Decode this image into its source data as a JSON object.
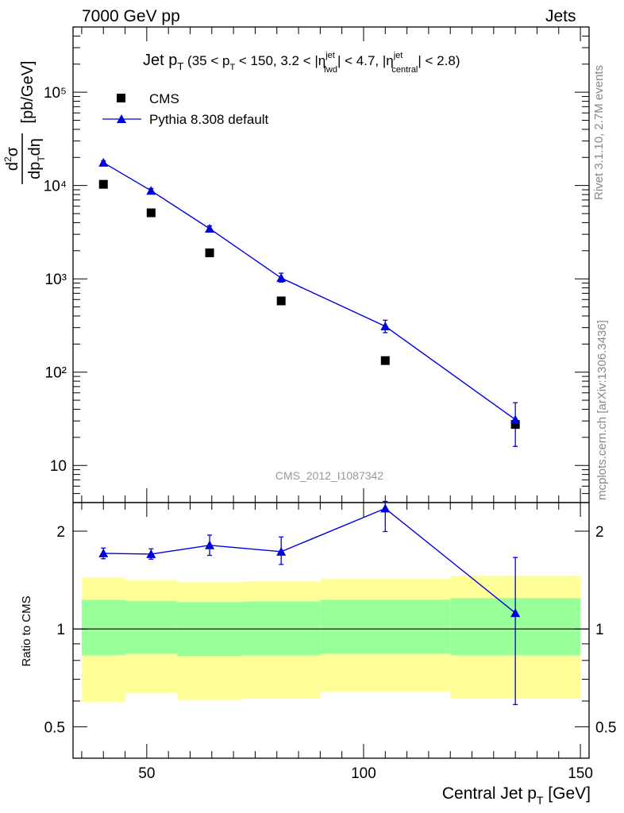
{
  "header": {
    "left": "7000 GeV pp",
    "right": "Jets"
  },
  "side_labels": {
    "rivet": "Rivet 3.1.10,  2.7M events",
    "mcplots": "mcplots.cern.ch [arXiv:1306.3436]"
  },
  "chart_data": [
    {
      "type": "scatter",
      "panel": "main",
      "title": "Jet p_T (35 < p_T < 150, 3.2 < |η_fwd^jet| < 4.7, |η_central^jet| < 2.8)",
      "title_parts": {
        "a": "Jet p",
        "b": "T",
        "c": " (35 < p",
        "d": "T",
        "e": " < 150, 3.2 < |η",
        "f": "jet",
        "g": "fwd",
        "h": "| < 4.7, |η",
        "i": "jet",
        "j": "central",
        "k": "| < 2.8)"
      },
      "ylabel": "d²σ/dp_T dη [pb/GeV]",
      "ylabel_parts": {
        "num": "d",
        "num_sup": "2",
        "num_tail": "σ",
        "den": "dp",
        "den_sub": "T",
        "den_tail": "dη",
        "unit": "[pb/GeV]"
      },
      "y_scale": "log",
      "xlim": [
        33,
        152
      ],
      "ylim": [
        4,
        500000
      ],
      "y_ticks": [
        "10",
        "10²",
        "10³",
        "10⁴",
        "10⁵"
      ],
      "legend_position": "top-left",
      "watermark": "CMS_2012_I1087342",
      "series": [
        {
          "name": "CMS",
          "marker": "square",
          "color": "#000000",
          "points": [
            {
              "x": 40,
              "y": 10300
            },
            {
              "x": 51,
              "y": 5100
            },
            {
              "x": 64.5,
              "y": 1900
            },
            {
              "x": 81,
              "y": 580
            },
            {
              "x": 105,
              "y": 133
            },
            {
              "x": 135,
              "y": 27.5
            }
          ]
        },
        {
          "name": "Pythia 8.308 default",
          "marker": "triangle",
          "color": "#0000dd",
          "line": true,
          "points": [
            {
              "x": 40,
              "y": 17600,
              "ylo": 16900,
              "yhi": 18400
            },
            {
              "x": 51,
              "y": 8800,
              "ylo": 8300,
              "yhi": 9300
            },
            {
              "x": 64.5,
              "y": 3450,
              "ylo": 3200,
              "yhi": 3700
            },
            {
              "x": 81,
              "y": 1020,
              "ylo": 920,
              "yhi": 1150
            },
            {
              "x": 105,
              "y": 310,
              "ylo": 265,
              "yhi": 360
            },
            {
              "x": 135,
              "y": 31,
              "ylo": 16,
              "yhi": 47
            }
          ]
        }
      ]
    },
    {
      "type": "scatter",
      "panel": "ratio",
      "xlabel": "Central Jet p_T [GeV]",
      "xlabel_parts": {
        "a": "Central Jet p",
        "b": "T",
        "c": " [GeV]"
      },
      "ylabel": "Ratio to CMS",
      "y_scale": "log",
      "xlim": [
        33,
        152
      ],
      "ylim": [
        0.4,
        2.45
      ],
      "x_ticks": [
        50,
        100,
        150
      ],
      "y_ticks": [
        0.5,
        1,
        2
      ],
      "reference_line": 1,
      "bands": [
        {
          "x0": 35,
          "x1": 45,
          "inner": [
            0.83,
            1.23
          ],
          "outer": [
            0.595,
            1.44
          ]
        },
        {
          "x0": 45,
          "x1": 57,
          "inner": [
            0.84,
            1.22
          ],
          "outer": [
            0.635,
            1.415
          ]
        },
        {
          "x0": 57,
          "x1": 72,
          "inner": [
            0.825,
            1.21
          ],
          "outer": [
            0.605,
            1.39
          ]
        },
        {
          "x0": 72,
          "x1": 90,
          "inner": [
            0.83,
            1.215
          ],
          "outer": [
            0.61,
            1.4
          ]
        },
        {
          "x0": 90,
          "x1": 120,
          "inner": [
            0.84,
            1.23
          ],
          "outer": [
            0.64,
            1.43
          ]
        },
        {
          "x0": 120,
          "x1": 150,
          "inner": [
            0.83,
            1.245
          ],
          "outer": [
            0.61,
            1.46
          ]
        }
      ],
      "band_colors": {
        "inner": "#99ff99",
        "outer": "#ffff99"
      },
      "series": [
        {
          "name": "Pythia 8.308 default",
          "marker": "triangle",
          "color": "#0000dd",
          "line": true,
          "points": [
            {
              "x": 40,
              "y": 1.71,
              "ylo": 1.645,
              "yhi": 1.775
            },
            {
              "x": 51,
              "y": 1.7,
              "ylo": 1.64,
              "yhi": 1.765
            },
            {
              "x": 64.5,
              "y": 1.81,
              "ylo": 1.685,
              "yhi": 1.945
            },
            {
              "x": 81,
              "y": 1.73,
              "ylo": 1.58,
              "yhi": 1.92
            },
            {
              "x": 105,
              "y": 2.35,
              "ylo": 1.995,
              "yhi": 2.47
            },
            {
              "x": 135,
              "y": 1.12,
              "ylo": 0.585,
              "yhi": 1.66
            }
          ]
        }
      ]
    }
  ]
}
